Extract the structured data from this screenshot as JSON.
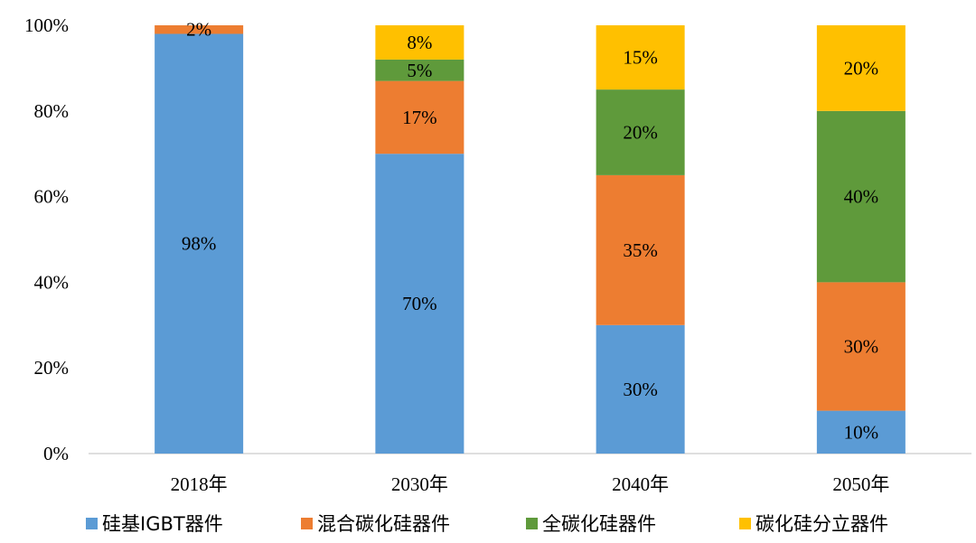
{
  "chart_data": {
    "type": "bar",
    "stacked": true,
    "categories": [
      "2018年",
      "2030年",
      "2040年",
      "2050年"
    ],
    "series": [
      {
        "name": "硅基IGBT器件",
        "color": "#5B9BD5",
        "values": [
          98,
          70,
          30,
          10
        ],
        "labels": [
          "98%",
          "70%",
          "30%",
          "10%"
        ]
      },
      {
        "name": "混合碳化硅器件",
        "color": "#ED7D31",
        "values": [
          2,
          17,
          35,
          30
        ],
        "labels": [
          "2%",
          "17%",
          "35%",
          "30%"
        ]
      },
      {
        "name": "全碳化硅器件",
        "color": "#5F9A3B",
        "values": [
          0,
          5,
          20,
          40
        ],
        "labels": [
          "",
          "5%",
          "20%",
          "40%"
        ]
      },
      {
        "name": "碳化硅分立器件",
        "color": "#FFC000",
        "values": [
          0,
          8,
          15,
          20
        ],
        "labels": [
          "",
          "8%",
          "15%",
          "20%"
        ]
      }
    ],
    "ylim": [
      0,
      100
    ],
    "yticks": [
      "0%",
      "20%",
      "40%",
      "60%",
      "80%",
      "100%"
    ],
    "title": "",
    "xlabel": "",
    "ylabel": "",
    "grid": false,
    "legend_position": "bottom"
  }
}
